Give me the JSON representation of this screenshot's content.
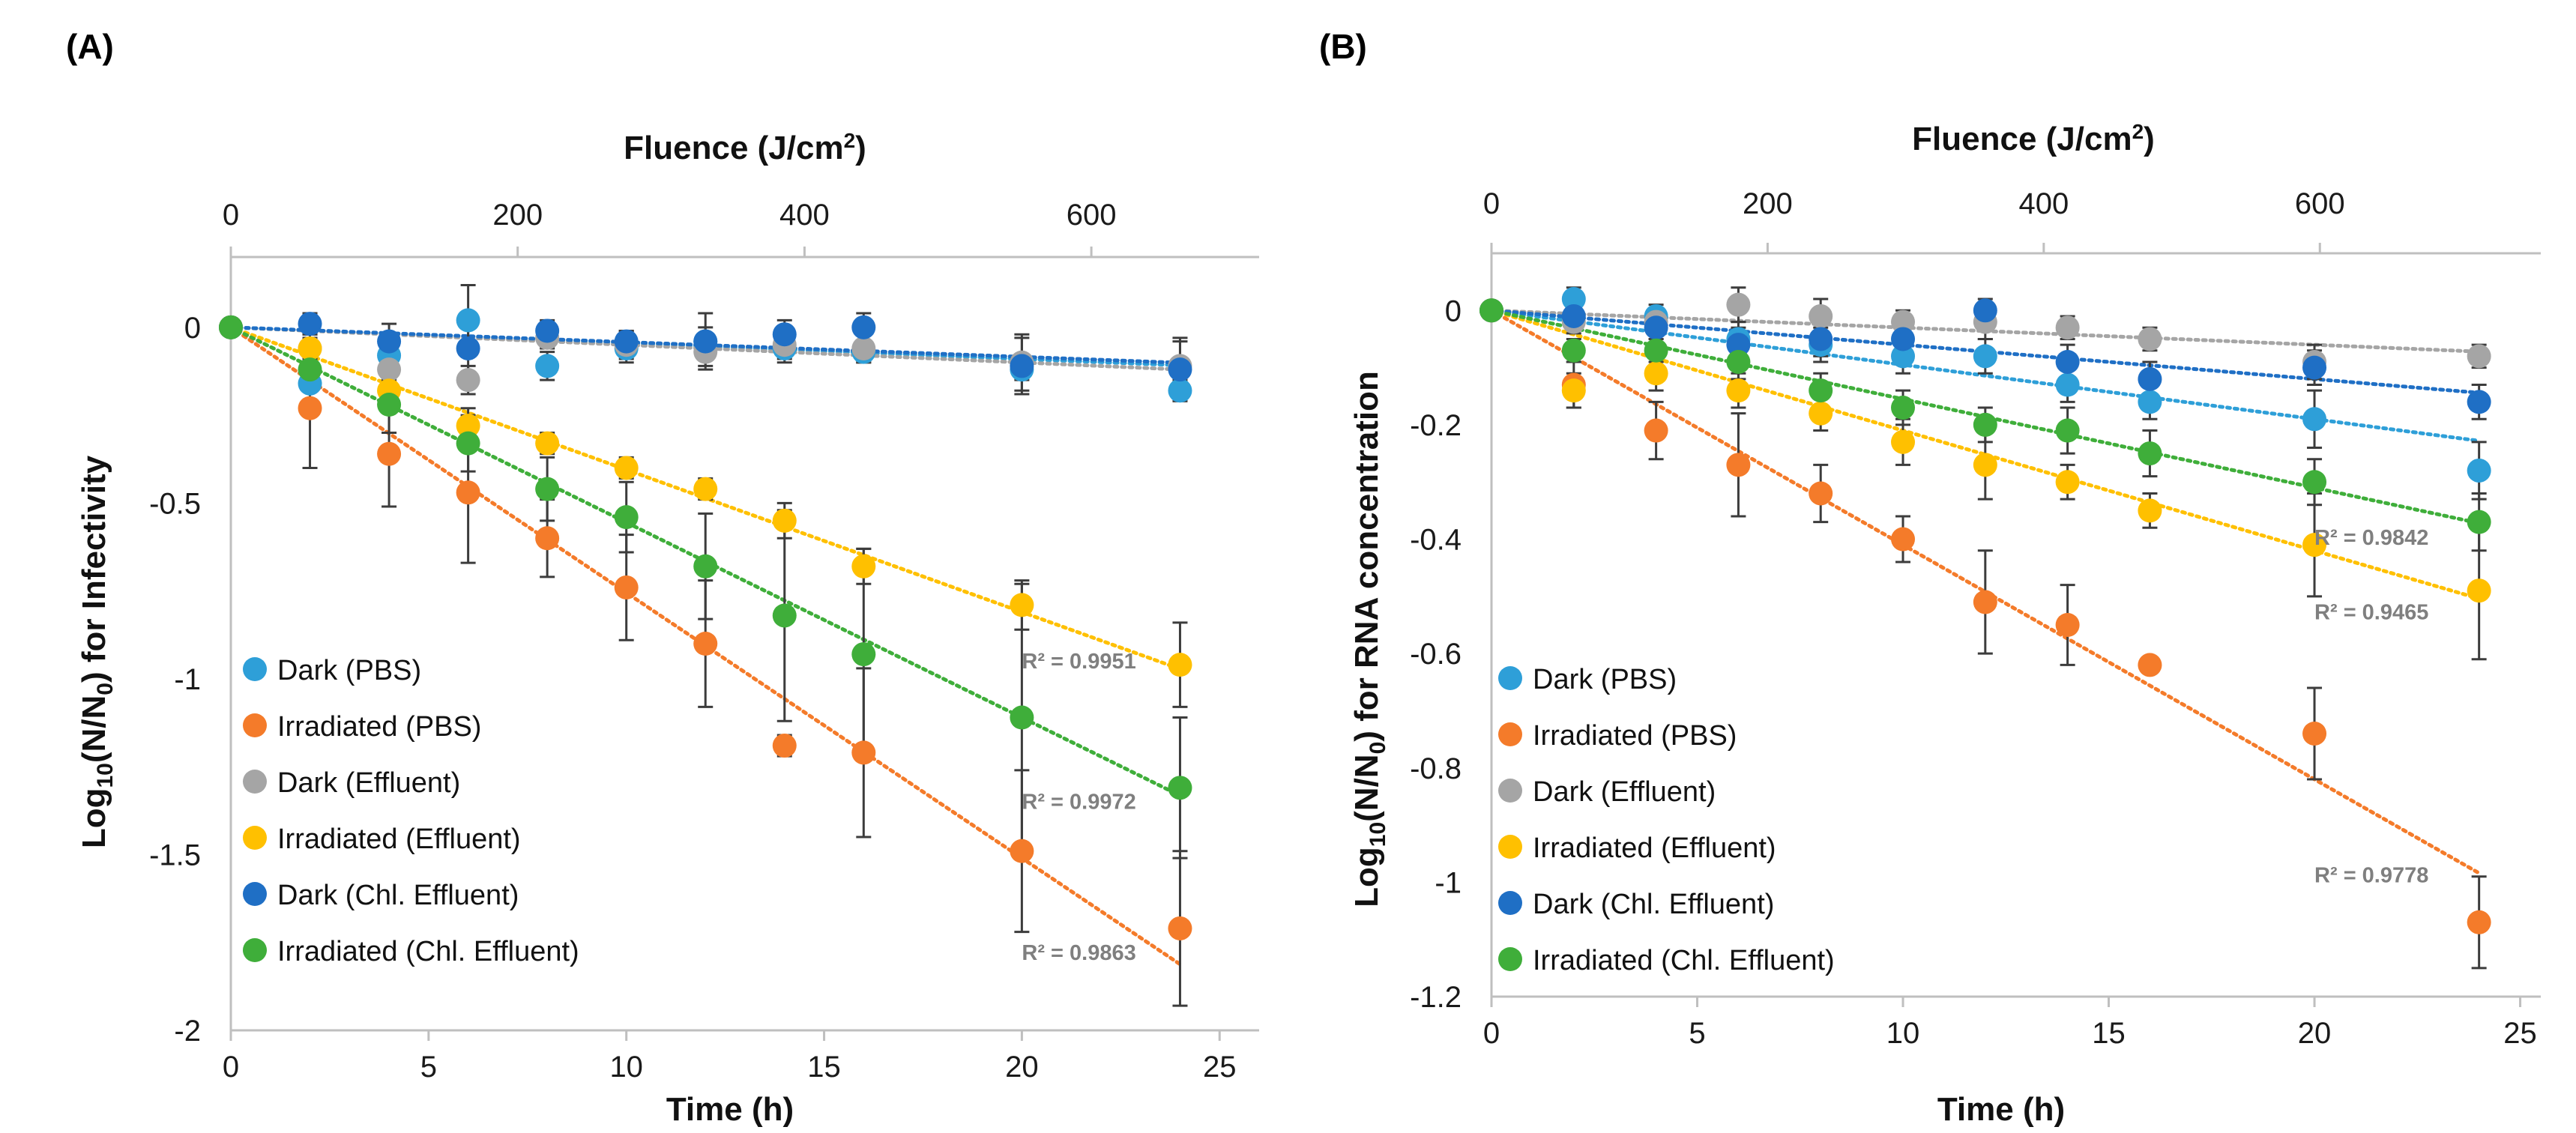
{
  "chart_data": [
    {
      "type": "scatter",
      "panel_label": "(A)",
      "top_axis": {
        "label": "Fluence (J/cm²)",
        "ticks": [
          0,
          200,
          400,
          600
        ],
        "range": [
          0,
          717
        ]
      },
      "xlabel": "Time (h)",
      "ylabel": "Log10(N/N0) for Infectivity",
      "ylabel_parts": {
        "pre": "Log",
        "sub1": "10",
        "mid": "(N/N",
        "sub2": "0",
        "post": ") for Infectivity"
      },
      "xlim": [
        0,
        26
      ],
      "ylim": [
        -2,
        0.2
      ],
      "xticks": [
        0,
        5,
        10,
        15,
        20,
        25
      ],
      "yticks": [
        0,
        -0.5,
        -1,
        -1.5,
        -2
      ],
      "ytick_labels": [
        "0",
        "-0.5",
        "-1",
        "-1.5",
        "-2"
      ],
      "series": [
        {
          "name": "Dark (PBS)",
          "color": "#2e9fd8",
          "x": [
            0,
            2,
            4,
            6,
            8,
            10,
            12,
            14,
            16,
            20,
            24
          ],
          "y": [
            0,
            -0.16,
            -0.08,
            0.02,
            -0.11,
            -0.06,
            -0.04,
            -0.06,
            -0.07,
            -0.12,
            -0.18
          ],
          "err": [
            0,
            0.05,
            0.05,
            0.1,
            0.04,
            0.04,
            0.04,
            0.04,
            0.03,
            0.03,
            0.03
          ],
          "fit_slope": -0.0045
        },
        {
          "name": "Irradiated (PBS)",
          "color": "#f47b2a",
          "x": [
            0,
            2,
            4,
            6,
            8,
            10,
            12,
            14,
            16,
            20,
            24
          ],
          "y": [
            0,
            -0.23,
            -0.36,
            -0.47,
            -0.6,
            -0.74,
            -0.9,
            -1.19,
            -1.21,
            -1.49,
            -1.71
          ],
          "err": [
            0,
            0.17,
            0.15,
            0.2,
            0.11,
            0.15,
            0.18,
            0.03,
            0.24,
            0.23,
            0.22
          ],
          "fit_slope": -0.0755,
          "r2": "R² = 0.9863",
          "r2_at": [
            20,
            -1.8
          ]
        },
        {
          "name": "Dark (Effluent)",
          "color": "#a5a5a5",
          "x": [
            0,
            2,
            4,
            6,
            8,
            10,
            12,
            14,
            16,
            20,
            24
          ],
          "y": [
            0,
            -0.06,
            -0.12,
            -0.15,
            -0.03,
            -0.05,
            -0.07,
            -0.05,
            -0.06,
            -0.1,
            -0.11
          ],
          "err": [
            0,
            0.04,
            0.04,
            0.04,
            0.03,
            0.04,
            0.04,
            0.04,
            0.04,
            0.08,
            0.08
          ],
          "fit_slope": -0.005
        },
        {
          "name": "Irradiated (Effluent)",
          "color": "#ffc000",
          "x": [
            0,
            2,
            4,
            6,
            8,
            10,
            12,
            14,
            16,
            20,
            24
          ],
          "y": [
            0,
            -0.06,
            -0.18,
            -0.28,
            -0.33,
            -0.4,
            -0.46,
            -0.55,
            -0.68,
            -0.79,
            -0.96
          ],
          "err": [
            0,
            0.03,
            0.03,
            0.05,
            0.03,
            0.03,
            0.03,
            0.05,
            0.05,
            0.07,
            0.12
          ],
          "fit_slope": -0.0405,
          "r2": "R² = 0.9951",
          "r2_at": [
            20,
            -0.97
          ]
        },
        {
          "name": "Dark (Chl. Effluent)",
          "color": "#1f6fc5",
          "x": [
            0,
            2,
            4,
            6,
            8,
            10,
            12,
            14,
            16,
            20,
            24
          ],
          "y": [
            0,
            0.01,
            -0.04,
            -0.06,
            -0.01,
            -0.04,
            -0.04,
            -0.02,
            0,
            -0.11,
            -0.12
          ],
          "err": [
            0,
            0.03,
            0.05,
            0.1,
            0.03,
            0.03,
            0.08,
            0.04,
            0.04,
            0.08,
            0.08
          ],
          "fit_slope": -0.0042
        },
        {
          "name": "Irradiated (Chl. Effluent)",
          "color": "#3fae3a",
          "x": [
            0,
            2,
            4,
            6,
            8,
            10,
            12,
            14,
            16,
            20,
            24
          ],
          "y": [
            0,
            -0.12,
            -0.22,
            -0.33,
            -0.46,
            -0.54,
            -0.68,
            -0.82,
            -0.93,
            -1.11,
            -1.31
          ],
          "err": [
            0,
            0.05,
            0.08,
            0.08,
            0.09,
            0.1,
            0.15,
            0.3,
            0.3,
            0.38,
            0.2
          ],
          "fit_slope": -0.0555,
          "r2": "R² = 0.9972",
          "r2_at": [
            20,
            -1.37
          ]
        }
      ]
    },
    {
      "type": "scatter",
      "panel_label": "(B)",
      "top_axis": {
        "label": "Fluence (J/cm²)",
        "ticks": [
          0,
          200,
          400,
          600
        ],
        "range": [
          0,
          760
        ]
      },
      "xlabel": "Time (h)",
      "ylabel": "Log10(N/N0) for RNA concentration",
      "ylabel_parts": {
        "pre": "Log",
        "sub1": "10",
        "mid": "(N/N",
        "sub2": "0",
        "post": ") for RNA concentration"
      },
      "xlim": [
        0,
        25.5
      ],
      "ylim": [
        -1.2,
        0.1
      ],
      "xticks": [
        0,
        5,
        10,
        15,
        20,
        25
      ],
      "yticks": [
        0,
        -0.2,
        -0.4,
        -0.6,
        -0.8,
        -1,
        -1.2
      ],
      "ytick_labels": [
        "0",
        "-0.2",
        "-0.4",
        "-0.6",
        "-0.8",
        "-1",
        "-1.2"
      ],
      "series": [
        {
          "name": "Dark (PBS)",
          "color": "#2e9fd8",
          "x": [
            0,
            2,
            4,
            6,
            8,
            10,
            12,
            14,
            16,
            20,
            24
          ],
          "y": [
            0,
            0.02,
            -0.01,
            -0.05,
            -0.06,
            -0.08,
            -0.08,
            -0.13,
            -0.16,
            -0.19,
            -0.28
          ],
          "err": [
            0,
            0.02,
            0.02,
            0.03,
            0.03,
            0.03,
            0.03,
            0.03,
            0.03,
            0.05,
            0.05
          ],
          "fit_slope": -0.0095
        },
        {
          "name": "Irradiated (PBS)",
          "color": "#f47b2a",
          "x": [
            0,
            2,
            4,
            6,
            8,
            10,
            12,
            14,
            16,
            20,
            24
          ],
          "y": [
            0,
            -0.13,
            -0.21,
            -0.27,
            -0.32,
            -0.4,
            -0.51,
            -0.55,
            -0.62,
            -0.74,
            -1.07
          ],
          "err": [
            0,
            0.04,
            0.05,
            0.09,
            0.05,
            0.04,
            0.09,
            0.07,
            0.01,
            0.08,
            0.08
          ],
          "fit_slope": -0.041,
          "r2": "R² = 0.9778",
          "r2_at": [
            20,
            -1.0
          ]
        },
        {
          "name": "Dark (Effluent)",
          "color": "#a5a5a5",
          "x": [
            0,
            2,
            4,
            6,
            8,
            10,
            12,
            14,
            16,
            20,
            24
          ],
          "y": [
            0,
            -0.02,
            -0.02,
            0.01,
            -0.01,
            -0.02,
            -0.02,
            -0.03,
            -0.05,
            -0.09,
            -0.08
          ],
          "err": [
            0,
            0.02,
            0.02,
            0.03,
            0.03,
            0.02,
            0.03,
            0.02,
            0.02,
            0.03,
            0.02
          ],
          "fit_slope": -0.003
        },
        {
          "name": "Irradiated (Effluent)",
          "color": "#ffc000",
          "x": [
            0,
            2,
            4,
            6,
            8,
            10,
            12,
            14,
            16,
            20,
            24
          ],
          "y": [
            0,
            -0.14,
            -0.11,
            -0.14,
            -0.18,
            -0.23,
            -0.27,
            -0.3,
            -0.35,
            -0.41,
            -0.49
          ],
          "err": [
            0,
            0.03,
            0.03,
            0.03,
            0.03,
            0.04,
            0.06,
            0.03,
            0.03,
            0.09,
            0.12
          ],
          "fit_slope": -0.021,
          "r2": "R² = 0.9465",
          "r2_at": [
            20,
            -0.54
          ]
        },
        {
          "name": "Dark (Chl. Effluent)",
          "color": "#1f6fc5",
          "x": [
            0,
            2,
            4,
            6,
            8,
            10,
            12,
            14,
            16,
            20,
            24
          ],
          "y": [
            0,
            -0.01,
            -0.03,
            -0.06,
            -0.05,
            -0.05,
            0,
            -0.09,
            -0.12,
            -0.1,
            -0.16
          ],
          "err": [
            0,
            0.02,
            0.02,
            0.03,
            0.03,
            0.03,
            0.02,
            0.03,
            0.03,
            0.03,
            0.03
          ],
          "fit_slope": -0.006
        },
        {
          "name": "Irradiated (Chl. Effluent)",
          "color": "#3fae3a",
          "x": [
            0,
            2,
            4,
            6,
            8,
            10,
            12,
            14,
            16,
            20,
            24
          ],
          "y": [
            0,
            -0.07,
            -0.07,
            -0.09,
            -0.14,
            -0.17,
            -0.2,
            -0.21,
            -0.25,
            -0.3,
            -0.37
          ],
          "err": [
            0,
            0.02,
            0.02,
            0.03,
            0.03,
            0.03,
            0.03,
            0.04,
            0.04,
            0.04,
            0.05
          ],
          "fit_slope": -0.0155,
          "r2": "R² = 0.9842",
          "r2_at": [
            20,
            -0.41
          ]
        }
      ]
    }
  ]
}
